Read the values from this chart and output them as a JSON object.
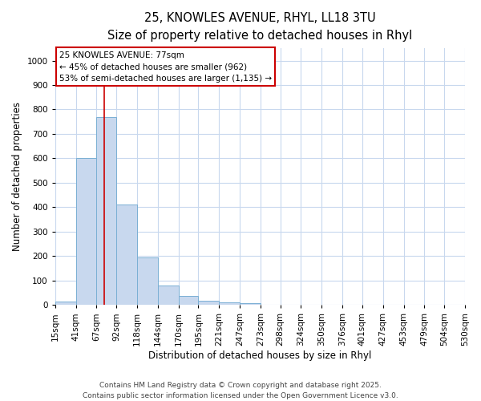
{
  "title_line1": "25, KNOWLES AVENUE, RHYL, LL18 3TU",
  "title_line2": "Size of property relative to detached houses in Rhyl",
  "xlabel": "Distribution of detached houses by size in Rhyl",
  "ylabel": "Number of detached properties",
  "bar_color": "#c8d8ee",
  "bar_edge_color": "#7aafd4",
  "vline_color": "#cc0000",
  "vline_x": 77,
  "annotation_title": "25 KNOWLES AVENUE: 77sqm",
  "annotation_line2": "← 45% of detached houses are smaller (962)",
  "annotation_line3": "53% of semi-detached houses are larger (1,135) →",
  "annotation_box_edgecolor": "#cc0000",
  "bins": [
    15,
    41,
    67,
    92,
    118,
    144,
    170,
    195,
    221,
    247,
    273,
    298,
    324,
    350,
    376,
    401,
    427,
    453,
    479,
    504,
    530
  ],
  "values": [
    15,
    600,
    770,
    410,
    195,
    80,
    38,
    17,
    12,
    8,
    0,
    0,
    0,
    0,
    0,
    0,
    0,
    0,
    0,
    0
  ],
  "ylim": [
    0,
    1050
  ],
  "yticks": [
    0,
    100,
    200,
    300,
    400,
    500,
    600,
    700,
    800,
    900,
    1000
  ],
  "background_color": "#ffffff",
  "plot_bg_color": "#ffffff",
  "grid_color": "#c8d8ee",
  "footer_line1": "Contains HM Land Registry data © Crown copyright and database right 2025.",
  "footer_line2": "Contains public sector information licensed under the Open Government Licence v3.0.",
  "title_fontsize": 10.5,
  "subtitle_fontsize": 9.5,
  "axis_label_fontsize": 8.5,
  "tick_fontsize": 7.5,
  "annot_fontsize": 7.5,
  "footer_fontsize": 6.5
}
